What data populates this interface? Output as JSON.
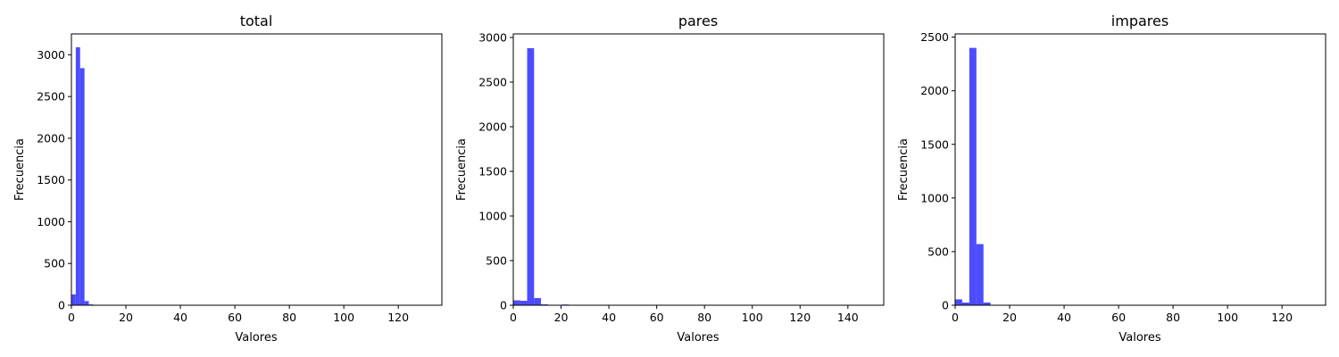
{
  "chart_data": [
    {
      "type": "bar",
      "title": "total",
      "xlabel": "Valores",
      "ylabel": "Frecuencia",
      "xlim": [
        0,
        136
      ],
      "ylim": [
        0,
        3250
      ],
      "xticks": [
        0,
        20,
        40,
        60,
        80,
        100,
        120
      ],
      "yticks": [
        0,
        500,
        1000,
        1500,
        2000,
        2500,
        3000
      ],
      "color": "#0000ff",
      "grid": false,
      "bin_width": 1.6,
      "bin_starts": [
        0,
        1.6,
        3.2,
        4.8,
        6.4,
        8.0,
        9.6
      ],
      "values": [
        130,
        3090,
        2840,
        50,
        10,
        5,
        2
      ]
    },
    {
      "type": "bar",
      "title": "pares",
      "xlabel": "Valores",
      "ylabel": "Frecuencia",
      "xlim": [
        0,
        155
      ],
      "ylim": [
        0,
        3040
      ],
      "xticks": [
        0,
        20,
        40,
        60,
        80,
        100,
        120,
        140
      ],
      "yticks": [
        0,
        500,
        1000,
        1500,
        2000,
        2500,
        3000
      ],
      "color": "#0000ff",
      "grid": false,
      "bin_width": 2.9,
      "bin_starts": [
        0,
        2.9,
        5.8,
        8.7,
        11.6,
        14.5,
        17.4,
        20.3
      ],
      "values": [
        55,
        50,
        2880,
        80,
        10,
        3,
        2,
        8
      ]
    },
    {
      "type": "bar",
      "title": "impares",
      "xlabel": "Valores",
      "ylabel": "Frecuencia",
      "xlim": [
        0,
        136
      ],
      "ylim": [
        0,
        2530
      ],
      "xticks": [
        0,
        20,
        40,
        60,
        80,
        100,
        120
      ],
      "yticks": [
        0,
        500,
        1000,
        1500,
        2000,
        2500
      ],
      "color": "#0000ff",
      "grid": false,
      "bin_width": 2.6,
      "bin_starts": [
        0,
        2.6,
        5.2,
        7.8,
        10.4,
        13.0
      ],
      "values": [
        55,
        25,
        2400,
        570,
        25,
        3
      ]
    }
  ]
}
